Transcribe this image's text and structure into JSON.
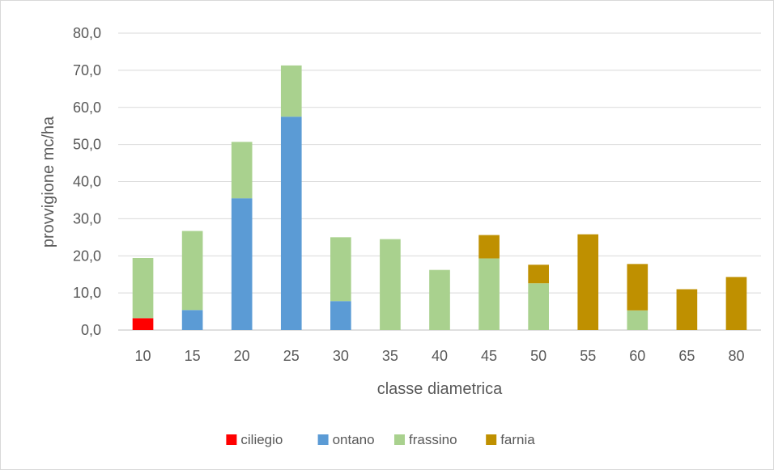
{
  "chart_data": {
    "type": "bar",
    "stacked": true,
    "title": "",
    "xlabel": "classe diametrica",
    "ylabel": "provvigione mc/ha",
    "ylim": [
      0,
      80
    ],
    "ytick_step": 10,
    "ytick_labels": [
      "0,0",
      "10,0",
      "20,0",
      "30,0",
      "40,0",
      "50,0",
      "60,0",
      "70,0",
      "80,0"
    ],
    "grid": true,
    "legend_position": "bottom",
    "categories": [
      "10",
      "15",
      "20",
      "25",
      "30",
      "35",
      "40",
      "45",
      "50",
      "55",
      "60",
      "65",
      "80"
    ],
    "series": [
      {
        "name": "ciliegio",
        "color": "#ff0000",
        "values": [
          3.2,
          0,
          0,
          0,
          0,
          0,
          0,
          0,
          0,
          0,
          0,
          0,
          0
        ]
      },
      {
        "name": "ontano",
        "color": "#5b9bd5",
        "values": [
          0,
          5.4,
          35.5,
          57.5,
          7.8,
          0,
          0,
          0,
          0,
          0,
          0,
          0,
          0
        ]
      },
      {
        "name": "frassino",
        "color": "#a9d18e",
        "values": [
          16.2,
          21.3,
          15.2,
          13.8,
          17.2,
          24.5,
          16.2,
          19.3,
          12.6,
          0,
          5.3,
          0,
          0
        ]
      },
      {
        "name": "farnia",
        "color": "#bf9000",
        "values": [
          0,
          0,
          0,
          0,
          0,
          0,
          0,
          6.3,
          5.0,
          25.8,
          12.5,
          11.0,
          14.3
        ]
      }
    ]
  }
}
